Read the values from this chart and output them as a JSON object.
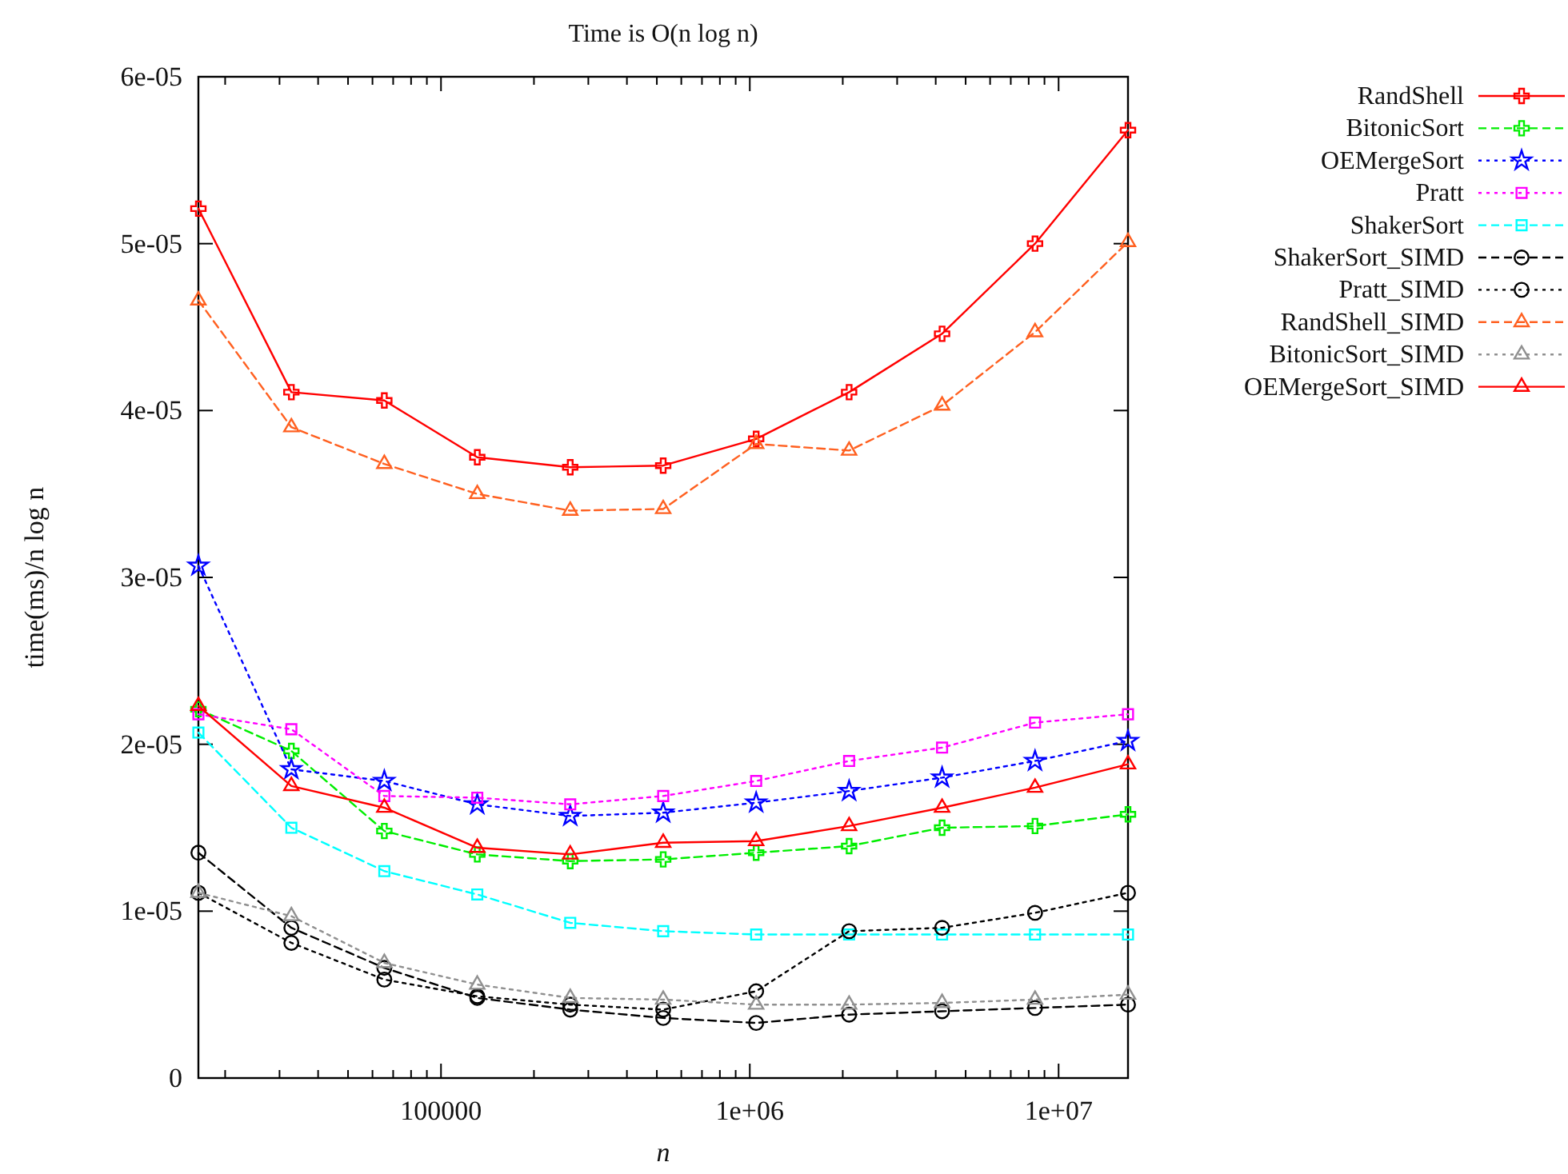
{
  "chart_data": {
    "type": "line",
    "title": "Time is O(n log n)",
    "xlabel": "n",
    "ylabel": "time(ms)/n log n",
    "log": "x",
    "x": [
      16384,
      32768,
      65536,
      131072,
      262144,
      524288,
      1048576,
      2097152,
      4194304,
      8388608,
      16777216
    ],
    "xlim": [
      16384,
      16777216
    ],
    "xticks": [
      {
        "value": 20000,
        "label": null
      },
      {
        "value": 30000,
        "label": null
      },
      {
        "value": 40000,
        "label": null
      },
      {
        "value": 50000,
        "label": null
      },
      {
        "value": 60000,
        "label": null
      },
      {
        "value": 70000,
        "label": null
      },
      {
        "value": 80000,
        "label": null
      },
      {
        "value": 90000,
        "label": null
      },
      {
        "value": 100000,
        "label": "100000"
      },
      {
        "value": 200000,
        "label": null
      },
      {
        "value": 300000,
        "label": null
      },
      {
        "value": 400000,
        "label": null
      },
      {
        "value": 500000,
        "label": null
      },
      {
        "value": 600000,
        "label": null
      },
      {
        "value": 700000,
        "label": null
      },
      {
        "value": 800000,
        "label": null
      },
      {
        "value": 900000,
        "label": null
      },
      {
        "value": 1000000,
        "label": "1e+06"
      },
      {
        "value": 2000000,
        "label": null
      },
      {
        "value": 3000000,
        "label": null
      },
      {
        "value": 4000000,
        "label": null
      },
      {
        "value": 5000000,
        "label": null
      },
      {
        "value": 6000000,
        "label": null
      },
      {
        "value": 7000000,
        "label": null
      },
      {
        "value": 8000000,
        "label": null
      },
      {
        "value": 9000000,
        "label": null
      },
      {
        "value": 10000000,
        "label": "1e+07"
      }
    ],
    "ylim": [
      0,
      6e-05
    ],
    "yticks": [
      0,
      {
        "value": 1e-05,
        "label": "1e-05"
      },
      {
        "value": 2e-05,
        "label": "2e-05"
      },
      {
        "value": 3e-05,
        "label": "3e-05"
      },
      {
        "value": 4e-05,
        "label": "4e-05"
      },
      {
        "value": 5e-05,
        "label": "5e-05"
      },
      {
        "value": 6e-05,
        "label": "6e-05"
      }
    ],
    "grid": false,
    "legend": "top right",
    "series": [
      {
        "name": "RandShell",
        "color": "#ff0000",
        "marker": "cross",
        "line_style": "solid",
        "values": [
          5.21e-05,
          4.11e-05,
          4.06e-05,
          3.72e-05,
          3.66e-05,
          3.67e-05,
          3.83e-05,
          4.11e-05,
          4.46e-05,
          5e-05,
          5.68e-05
        ]
      },
      {
        "name": "BitonicSort",
        "color": "#00ee00",
        "marker": "cross",
        "line_style": "dashed",
        "values": [
          2.21e-05,
          1.96e-05,
          1.48e-05,
          1.34e-05,
          1.3e-05,
          1.31e-05,
          1.35e-05,
          1.39e-05,
          1.5e-05,
          1.51e-05,
          1.58e-05
        ]
      },
      {
        "name": "OEMergeSort",
        "color": "#0000ff",
        "marker": "star",
        "line_style": "dotted",
        "values": [
          3.07e-05,
          1.85e-05,
          1.78e-05,
          1.64e-05,
          1.57e-05,
          1.59e-05,
          1.65e-05,
          1.72e-05,
          1.8e-05,
          1.9e-05,
          2.02e-05
        ]
      },
      {
        "name": "Pratt",
        "color": "#ff00ff",
        "marker": "square",
        "line_style": "dotted",
        "values": [
          2.18e-05,
          2.09e-05,
          1.69e-05,
          1.68e-05,
          1.64e-05,
          1.69e-05,
          1.78e-05,
          1.9e-05,
          1.98e-05,
          2.13e-05,
          2.18e-05
        ]
      },
      {
        "name": "ShakerSort",
        "color": "#00ffff",
        "marker": "square",
        "line_style": "dashed",
        "values": [
          2.07e-05,
          1.5e-05,
          1.24e-05,
          1.1e-05,
          9.3e-06,
          8.8e-06,
          8.6e-06,
          8.6e-06,
          8.6e-06,
          8.6e-06,
          8.6e-06
        ]
      },
      {
        "name": "ShakerSort_SIMD",
        "color": "#000000",
        "marker": "circle",
        "line_style": "dashed",
        "values": [
          1.35e-05,
          9e-06,
          6.6e-06,
          4.8e-06,
          4.1e-06,
          3.6e-06,
          3.3e-06,
          3.8e-06,
          4e-06,
          4.2e-06,
          4.4e-06
        ]
      },
      {
        "name": "Pratt_SIMD",
        "color": "#000000",
        "marker": "circle",
        "line_style": "dotted",
        "values": [
          1.11e-05,
          8.1e-06,
          5.9e-06,
          4.9e-06,
          4.4e-06,
          4.1e-06,
          5.2e-06,
          8.8e-06,
          9e-06,
          9.9e-06,
          1.11e-05
        ]
      },
      {
        "name": "RandShell_SIMD",
        "color": "#ff6020",
        "marker": "triangle",
        "line_style": "dashed",
        "values": [
          4.66e-05,
          3.9e-05,
          3.68e-05,
          3.5e-05,
          3.4e-05,
          3.41e-05,
          3.8e-05,
          3.76e-05,
          4.03e-05,
          4.47e-05,
          5.01e-05
        ]
      },
      {
        "name": "BitonicSort_SIMD",
        "color": "#909090",
        "marker": "triangle",
        "line_style": "dotted",
        "values": [
          1.11e-05,
          9.7e-06,
          6.9e-06,
          5.6e-06,
          4.8e-06,
          4.7e-06,
          4.4e-06,
          4.4e-06,
          4.5e-06,
          4.7e-06,
          5e-06
        ]
      },
      {
        "name": "OEMergeSort_SIMD",
        "color": "#ff0000",
        "marker": "triangle",
        "line_style": "solid",
        "values": [
          2.23e-05,
          1.75e-05,
          1.62e-05,
          1.38e-05,
          1.34e-05,
          1.41e-05,
          1.42e-05,
          1.51e-05,
          1.62e-05,
          1.74e-05,
          1.88e-05
        ]
      }
    ]
  }
}
